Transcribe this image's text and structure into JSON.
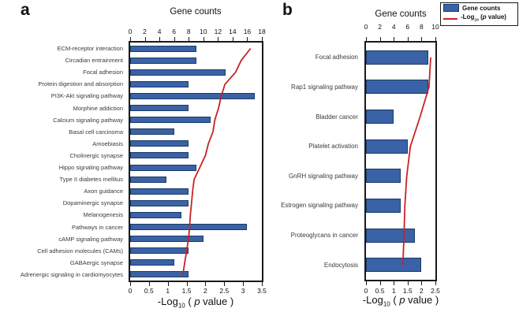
{
  "colors": {
    "bar_fill": "#3A62A6",
    "bar_border": "#1B3A66",
    "line": "#C82227",
    "frame": "#1A1A1A"
  },
  "legend": {
    "position": "top-right",
    "items": [
      {
        "swatch": "bar",
        "label": "Gene counts"
      },
      {
        "swatch": "line",
        "parts": {
          "prefix": "-Log",
          "sub": "10",
          "mid": " (",
          "p": "p",
          "suffix": " value)"
        }
      }
    ]
  },
  "chart_data": [
    {
      "type": "bar",
      "panel_letter": "a",
      "title": "Gene counts",
      "orientation": "horizontal",
      "grid": false,
      "legend_position": "top-right",
      "categories": [
        "ECM-receptor interaction",
        "Circadian entrainment",
        "Focal adhesion",
        "Protein digestion and absorption",
        "PI3K-Akt signaling pathway",
        "Morphine addiction",
        "Calcium signaling pathway",
        "Basal cell carcinoma",
        "Amoebiasis",
        "Cholinergic synapse",
        "Hippo signaling pathway",
        "Type II diabetes mellitus",
        "Axon guidance",
        "Dopaminergic synapse",
        "Melanogenesis",
        "Pathways in cancer",
        "cAMP signaling pathway",
        "Cell adhesion molecules (CAMs)",
        "GABAergic synapse",
        "Adrenergic signaling in cardiomyocytes"
      ],
      "series": [
        {
          "name": "Gene counts",
          "type": "bar",
          "axis": "top",
          "values": [
            9,
            9,
            13,
            8,
            17,
            8,
            11,
            6,
            8,
            8,
            9,
            5,
            8,
            8,
            7,
            16,
            10,
            8,
            6,
            8
          ]
        },
        {
          "name": "-Log10 (p value)",
          "type": "line",
          "axis": "bottom",
          "values": [
            3.2,
            2.95,
            2.8,
            2.52,
            2.42,
            2.35,
            2.25,
            2.2,
            2.08,
            2.0,
            1.85,
            1.7,
            1.66,
            1.63,
            1.6,
            1.58,
            1.55,
            1.5,
            1.45,
            1.4
          ]
        }
      ],
      "top_axis": {
        "label": "Gene counts",
        "range": [
          0,
          18
        ],
        "ticks": [
          "0",
          "2",
          "4",
          "6",
          "8",
          "10",
          "12",
          "14",
          "16",
          "18"
        ]
      },
      "bottom_axis": {
        "range": [
          0,
          3.5
        ],
        "ticks": [
          "0",
          "0.5",
          "1",
          "1.5",
          "2",
          "2.5",
          "3",
          "3.5"
        ],
        "label_parts": {
          "prefix": "-Log",
          "sub": "10",
          "mid": " ( ",
          "p": "p",
          "suffix": " value )"
        }
      }
    },
    {
      "type": "bar",
      "panel_letter": "b",
      "title": "Gene counts",
      "orientation": "horizontal",
      "grid": false,
      "legend_position": "top-right",
      "categories": [
        "Focal adhesion",
        "Rap1 signaling pathway",
        "Bladder cancer",
        "Platelet activation",
        "GnRH signaling pathway",
        "Estrogen signaling pathway",
        "Proteoglycans in cancer",
        "Endocytosis"
      ],
      "series": [
        {
          "name": "Gene counts",
          "type": "bar",
          "axis": "top",
          "values": [
            9,
            9,
            4,
            6,
            5,
            5,
            7,
            8
          ]
        },
        {
          "name": "-Log10 (p value)",
          "type": "line",
          "axis": "bottom",
          "values": [
            2.33,
            2.27,
            1.95,
            1.6,
            1.47,
            1.4,
            1.37,
            1.33
          ]
        }
      ],
      "top_axis": {
        "label": "Gene counts",
        "range": [
          0,
          10
        ],
        "ticks": [
          "0",
          "2",
          "4",
          "6",
          "8",
          "10"
        ]
      },
      "bottom_axis": {
        "range": [
          0,
          2.5
        ],
        "ticks": [
          "0",
          "0.5",
          "1",
          "1.5",
          "2",
          "2.5"
        ],
        "label_parts": {
          "prefix": "-Log",
          "sub": "10",
          "mid": " ( ",
          "p": "p",
          "suffix": " value )"
        }
      }
    }
  ]
}
